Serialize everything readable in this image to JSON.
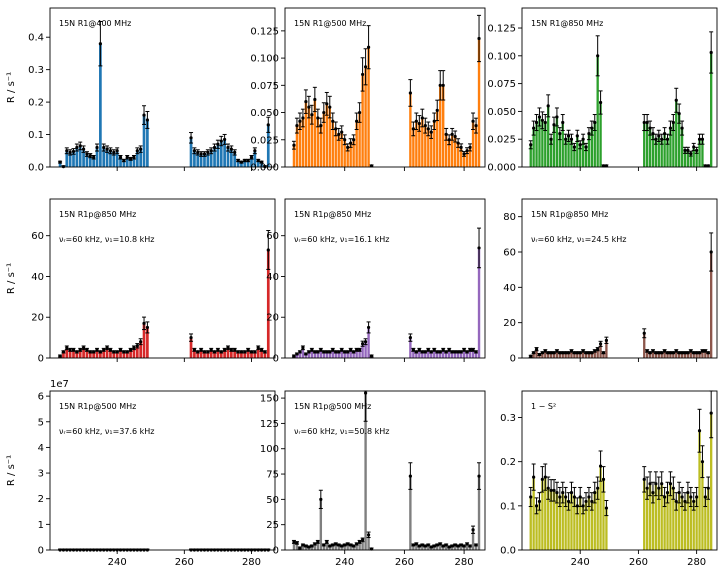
{
  "figure": {
    "sample_x": [
      223,
      224,
      225,
      226,
      227,
      228,
      229,
      230,
      231,
      232,
      233,
      234,
      235,
      236,
      237,
      238,
      239,
      240,
      241,
      242,
      243,
      244,
      245,
      246,
      247,
      248,
      249,
      262,
      263,
      264,
      265,
      266,
      267,
      268,
      269,
      270,
      271,
      272,
      273,
      274,
      275,
      276,
      277,
      278,
      279,
      280,
      281,
      282,
      283,
      284,
      285
    ],
    "xticks": [
      240,
      260,
      280
    ],
    "xlim": [
      220,
      287
    ],
    "colors": [
      "#1f77b4",
      "#ff7f0e",
      "#2ca02c",
      "#d62728",
      "#9467bd",
      "#8c564b",
      "#7f7f7f",
      "#7f7f7f",
      "#bcbd22"
    ]
  },
  "chart_data": [
    {
      "type": "bar",
      "title": "15N R1@400 MHz",
      "subtitle": "",
      "ylabel": "R / s⁻¹",
      "ylim": [
        0,
        0.49
      ],
      "yticks": [
        "0.0",
        "0.1",
        "0.2",
        "0.3",
        "0.4"
      ],
      "ytick_values": [
        0,
        0.1,
        0.2,
        0.3,
        0.4
      ],
      "color": "#1f77b4",
      "values": [
        0.015,
        0.001,
        0.05,
        0.045,
        0.048,
        0.06,
        0.065,
        0.055,
        0.04,
        0.035,
        0.03,
        0.06,
        0.38,
        0.06,
        0.055,
        0.05,
        0.045,
        0.05,
        0.03,
        0.02,
        0.03,
        0.025,
        0.03,
        0.05,
        0.055,
        0.16,
        0.145,
        0.09,
        0.05,
        0.045,
        0.04,
        0.04,
        0.045,
        0.05,
        0.06,
        0.07,
        0.08,
        0.085,
        0.06,
        0.055,
        0.045,
        0.02,
        0.015,
        0.02,
        0.02,
        0.03,
        0.05,
        0.02,
        0.015,
        0.001,
        0.13
      ]
    },
    {
      "type": "bar",
      "title": "15N R1@500 MHz",
      "subtitle": "",
      "ylabel": "",
      "ylim": [
        0,
        0.146
      ],
      "yticks": [
        "0.000",
        "0.025",
        "0.050",
        "0.075",
        "0.100",
        "0.125"
      ],
      "ytick_values": [
        0,
        0.025,
        0.05,
        0.075,
        0.1,
        0.125
      ],
      "color": "#ff7f0e",
      "values": [
        0.02,
        0.038,
        0.042,
        0.045,
        0.06,
        0.055,
        0.048,
        0.062,
        0.045,
        0.038,
        0.05,
        0.058,
        0.055,
        0.042,
        0.035,
        0.03,
        0.032,
        0.025,
        0.018,
        0.022,
        0.025,
        0.042,
        0.05,
        0.085,
        0.092,
        0.11,
        0.001,
        0.068,
        0.035,
        0.042,
        0.04,
        0.045,
        0.038,
        0.035,
        0.032,
        0.042,
        0.052,
        0.075,
        0.075,
        0.03,
        0.025,
        0.03,
        0.028,
        0.022,
        0.018,
        0.012,
        0.015,
        0.018,
        0.042,
        0.038,
        0.118
      ]
    },
    {
      "type": "bar",
      "title": "15N R1@850 MHz",
      "subtitle": "",
      "ylabel": "",
      "ylim": [
        0,
        0.143
      ],
      "yticks": [
        "0.000",
        "0.025",
        "0.050",
        "0.075",
        "0.100",
        "0.125"
      ],
      "ytick_values": [
        0,
        0.025,
        0.05,
        0.075,
        0.1,
        0.125
      ],
      "color": "#2ca02c",
      "values": [
        0.02,
        0.035,
        0.04,
        0.045,
        0.042,
        0.04,
        0.055,
        0.025,
        0.038,
        0.045,
        0.03,
        0.04,
        0.025,
        0.028,
        0.025,
        0.018,
        0.028,
        0.02,
        0.025,
        0.018,
        0.03,
        0.035,
        0.04,
        0.1,
        0.058,
        0.001,
        0.001,
        0.04,
        0.04,
        0.035,
        0.03,
        0.025,
        0.028,
        0.025,
        0.03,
        0.025,
        0.035,
        0.04,
        0.06,
        0.048,
        0.035,
        0.015,
        0.015,
        0.012,
        0.018,
        0.015,
        0.025,
        0.025,
        0.001,
        0.001,
        0.103
      ]
    },
    {
      "type": "bar",
      "title": "15N R1p@850 MHz",
      "subtitle": "νᵣ=60 kHz, ν₁=10.8 kHz",
      "ylabel": "R / s⁻¹",
      "ylim": [
        0,
        78
      ],
      "yticks": [
        "0",
        "20",
        "40",
        "60"
      ],
      "ytick_values": [
        0,
        20,
        40,
        60
      ],
      "color": "#d62728",
      "values": [
        1,
        3,
        5,
        4,
        4,
        3,
        4,
        5,
        4,
        3,
        3,
        4,
        3,
        4,
        5,
        4,
        3,
        3,
        4,
        3,
        3,
        4,
        5,
        6,
        8,
        17,
        15,
        10,
        4,
        3,
        4,
        3,
        3,
        4,
        3,
        4,
        3,
        4,
        5,
        4,
        4,
        3,
        3,
        3,
        4,
        3,
        3,
        5,
        4,
        3,
        53
      ]
    },
    {
      "type": "bar",
      "title": "15N R1p@850 MHz",
      "subtitle": "νᵣ=60 kHz, ν₁=16.1 kHz",
      "ylabel": "",
      "ylim": [
        0,
        78
      ],
      "yticks": [
        "0",
        "20",
        "40",
        "60"
      ],
      "ytick_values": [
        0,
        20,
        40,
        60
      ],
      "color": "#9467bd",
      "values": [
        1,
        2,
        3,
        5,
        2,
        3,
        4,
        3,
        3,
        4,
        3,
        3,
        3,
        4,
        3,
        3,
        4,
        3,
        3,
        4,
        3,
        4,
        4,
        7,
        8,
        15,
        1,
        10,
        4,
        3,
        4,
        3,
        3,
        4,
        3,
        4,
        3,
        3,
        4,
        3,
        4,
        3,
        3,
        3,
        3,
        4,
        3,
        4,
        4,
        3,
        54
      ]
    },
    {
      "type": "bar",
      "title": "15N R1p@850 MHz",
      "subtitle": "νᵣ=60 kHz, ν₁=24.5 kHz",
      "ylabel": "",
      "ylim": [
        0,
        90
      ],
      "yticks": [
        "0",
        "20",
        "40",
        "60",
        "80"
      ],
      "ytick_values": [
        0,
        20,
        40,
        60,
        80
      ],
      "color": "#8c564b",
      "values": [
        1,
        3,
        5,
        2,
        3,
        4,
        3,
        3,
        3,
        4,
        3,
        3,
        3,
        3,
        4,
        3,
        3,
        3,
        4,
        3,
        3,
        3,
        4,
        5,
        8,
        3,
        10,
        14,
        4,
        3,
        4,
        3,
        3,
        3,
        4,
        3,
        3,
        3,
        4,
        3,
        3,
        3,
        3,
        4,
        3,
        3,
        3,
        4,
        4,
        3,
        60
      ]
    },
    {
      "type": "bar",
      "title": "15N R1p@500 MHz",
      "subtitle": "νᵣ=60 kHz, ν₁=37.6 kHz",
      "ylabel": "R / s⁻¹",
      "ylim": [
        0,
        6.2
      ],
      "yticks": [
        "0",
        "1",
        "2",
        "3",
        "4",
        "5",
        "6"
      ],
      "ytick_values": [
        0,
        1,
        2,
        3,
        4,
        5,
        6
      ],
      "multiplier": "1e7",
      "color": "#7f7f7f",
      "values": [
        0.001,
        0.001,
        0.001,
        0.001,
        0.001,
        0.001,
        0.001,
        0.001,
        0.001,
        0.001,
        0.001,
        0.001,
        0.001,
        0.001,
        0.001,
        0.001,
        0.001,
        0.001,
        0.001,
        0.001,
        0.001,
        0.001,
        0.001,
        0.001,
        0.001,
        0.001,
        0.001,
        0.001,
        0.001,
        0.001,
        0.001,
        0.001,
        0.001,
        0.001,
        0.001,
        0.001,
        0.001,
        0.001,
        0.001,
        0.001,
        0.001,
        0.001,
        0.001,
        0.001,
        0.001,
        0.001,
        0.001,
        0.001,
        0.001,
        0.001,
        0.001
      ]
    },
    {
      "type": "bar",
      "title": "15N R1p@500 MHz",
      "subtitle": "νᵣ=60 kHz, ν₁=50.8 kHz",
      "ylabel": "",
      "ylim": [
        0,
        157
      ],
      "yticks": [
        "0",
        "25",
        "50",
        "75",
        "100",
        "125",
        "150"
      ],
      "ytick_values": [
        0,
        25,
        50,
        75,
        100,
        125,
        150
      ],
      "color": "#7f7f7f",
      "values": [
        8,
        7,
        2,
        5,
        4,
        3,
        4,
        6,
        8,
        50,
        5,
        8,
        4,
        5,
        6,
        5,
        4,
        5,
        6,
        5,
        4,
        6,
        8,
        10,
        155,
        15,
        1,
        73,
        5,
        6,
        4,
        5,
        4,
        5,
        3,
        4,
        5,
        6,
        4,
        5,
        3,
        4,
        5,
        4,
        5,
        4,
        6,
        4,
        20,
        5,
        73
      ]
    },
    {
      "type": "bar",
      "title": "1 − S²",
      "subtitle": "",
      "ylabel": "",
      "ylim": [
        0,
        0.36
      ],
      "yticks": [
        "0.0",
        "0.1",
        "0.2",
        "0.3"
      ],
      "ytick_values": [
        0,
        0.1,
        0.2,
        0.3
      ],
      "color": "#bcbd22",
      "values": [
        0.12,
        0.165,
        0.1,
        0.11,
        0.16,
        0.165,
        0.14,
        0.135,
        0.135,
        0.13,
        0.12,
        0.13,
        0.12,
        0.11,
        0.13,
        0.12,
        0.1,
        0.12,
        0.1,
        0.11,
        0.12,
        0.11,
        0.13,
        0.14,
        0.19,
        0.16,
        0.095,
        0.16,
        0.14,
        0.15,
        0.13,
        0.15,
        0.14,
        0.15,
        0.12,
        0.13,
        0.15,
        0.14,
        0.11,
        0.13,
        0.12,
        0.11,
        0.13,
        0.12,
        0.11,
        0.12,
        0.27,
        0.2,
        0.12,
        0.14,
        0.31
      ]
    }
  ]
}
